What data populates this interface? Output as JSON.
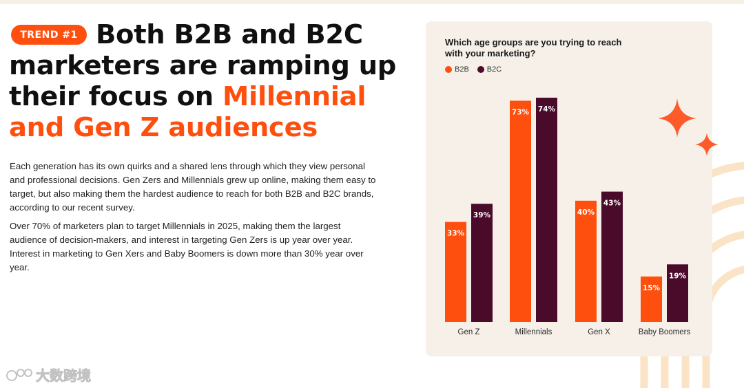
{
  "badge": "TREND #1",
  "headline": {
    "part1": "Both B2B and B2C marketers are ramping up their focus on ",
    "highlight": "Millennial and Gen Z audiences"
  },
  "paragraphs": [
    "Each generation has its own quirks and a shared lens through which they view personal and professional decisions. Gen Zers and Millennials grew up online, making them easy to target, but also making them the hardest audience to reach for both B2B and B2C brands, according to our recent survey.",
    "Over 70% of marketers plan to target Millennials in 2025, making them the largest audience of decision-makers, and interest in targeting Gen Zers is up year over year. Interest in marketing to Gen Xers and Baby Boomers is down more than 30% year over year."
  ],
  "colors": {
    "b2b": "#ff4f0f",
    "b2c": "#4a0a2a",
    "card": "#f6f0e9",
    "sparkle": "#ff5a2a"
  },
  "chart_data": {
    "type": "bar",
    "title": "Which age groups are you trying to reach with your marketing?",
    "categories": [
      "Gen Z",
      "Millennials",
      "Gen X",
      "Baby Boomers"
    ],
    "series": [
      {
        "name": "B2B",
        "values": [
          33,
          73,
          40,
          15
        ],
        "labels": [
          "33%",
          "73%",
          "40%",
          "15%"
        ]
      },
      {
        "name": "B2C",
        "values": [
          39,
          74,
          43,
          19
        ],
        "labels": [
          "39%",
          "74%",
          "43%",
          "19%"
        ]
      }
    ],
    "ylim": [
      0,
      74
    ],
    "grid": false,
    "legend": "top-left"
  },
  "watermark": "大数跨境",
  "icons": [
    "sparkle-icon",
    "watermark-logo-icon"
  ]
}
